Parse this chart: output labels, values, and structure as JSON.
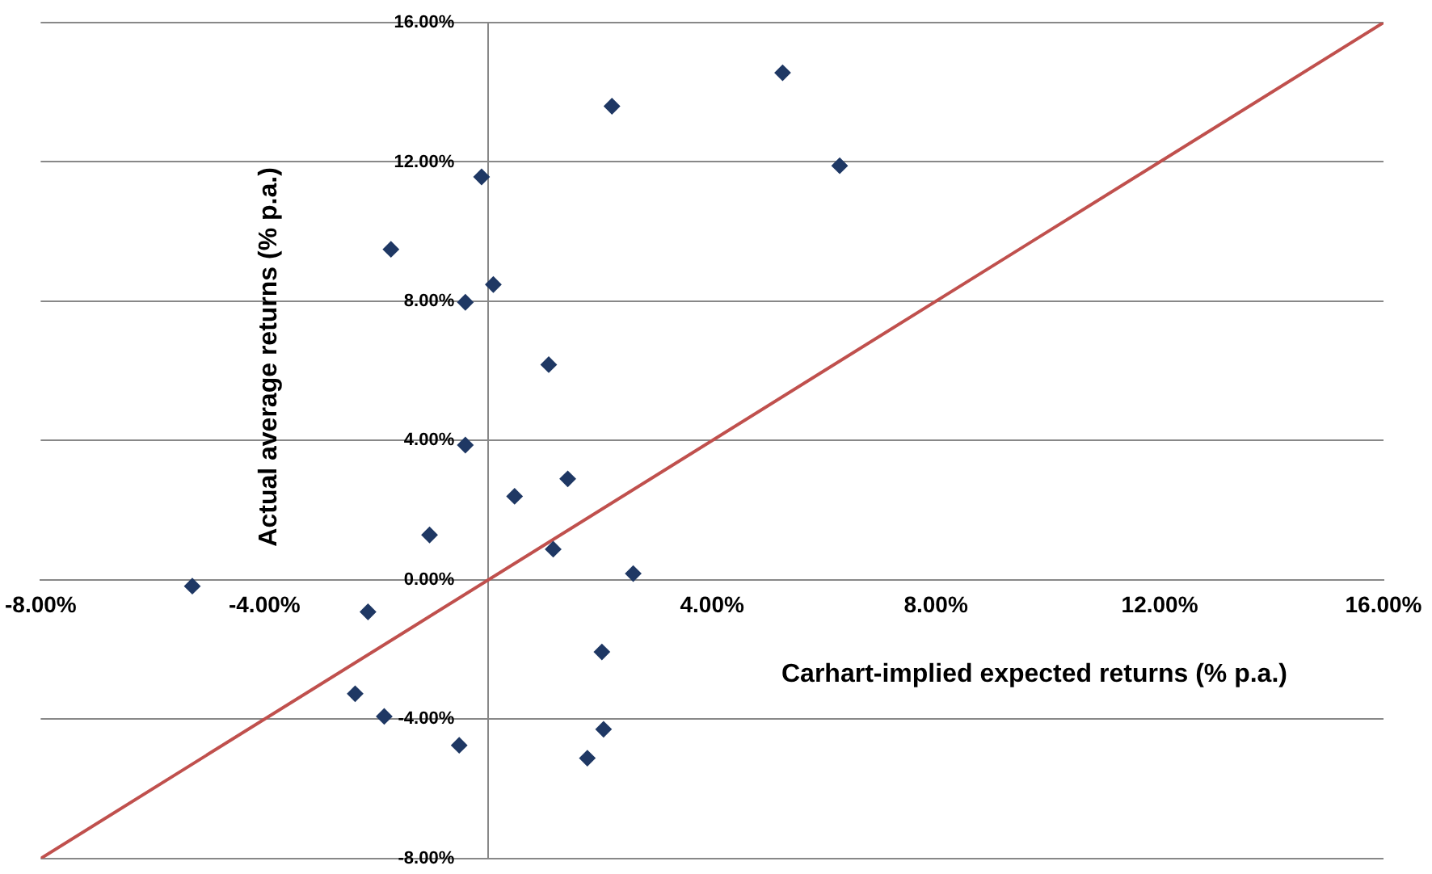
{
  "chart_data": {
    "type": "scatter",
    "xlabel": "Carhart-implied expected returns (% p.a.)",
    "ylabel": "Actual average returns (% p.a.)",
    "series": [
      {
        "type": "scatter",
        "color": "#1f3864",
        "marker": "diamond",
        "x": [
          -5.29,
          -2.15,
          -2.38,
          -1.86,
          -0.52,
          -0.41,
          -1.05,
          -1.74,
          -0.41,
          -0.12,
          0.09,
          1.08,
          0.47,
          1.42,
          1.16,
          2.59,
          2.21,
          5.26,
          6.28,
          2.03,
          2.06,
          1.77
        ],
        "values": [
          -0.18,
          -0.92,
          -3.27,
          -3.92,
          -4.75,
          3.87,
          1.29,
          9.49,
          7.97,
          11.57,
          8.48,
          6.18,
          2.4,
          2.9,
          0.88,
          0.18,
          13.6,
          14.56,
          11.89,
          -2.07,
          -4.29,
          -5.12
        ]
      },
      {
        "type": "line",
        "marker": "none",
        "color": "#c0504d",
        "x": [
          -8,
          16
        ],
        "values": [
          -8,
          16
        ]
      }
    ],
    "xlim": [
      -8,
      16
    ],
    "xticks": [
      {
        "value": -8,
        "label": "-8.00%"
      },
      {
        "value": -4,
        "label": "-4.00%"
      },
      {
        "value": 0,
        "label": null
      },
      {
        "value": 4,
        "label": "4.00%"
      },
      {
        "value": 8,
        "label": "8.00%"
      },
      {
        "value": 12,
        "label": "12.00%"
      },
      {
        "value": 16,
        "label": "16.00%"
      }
    ],
    "ylim": [
      -8,
      16
    ],
    "yticks": [
      {
        "value": -8,
        "label": "-8.00%"
      },
      {
        "value": -4,
        "label": "-4.00%"
      },
      {
        "value": 0,
        "label": "0.00%"
      },
      {
        "value": 4,
        "label": "4.00%"
      },
      {
        "value": 8,
        "label": "8.00%"
      },
      {
        "value": 12,
        "label": "12.00%"
      },
      {
        "value": 16,
        "label": "16.00%"
      }
    ],
    "grid": "y",
    "legend": false,
    "line_style": "solid"
  }
}
